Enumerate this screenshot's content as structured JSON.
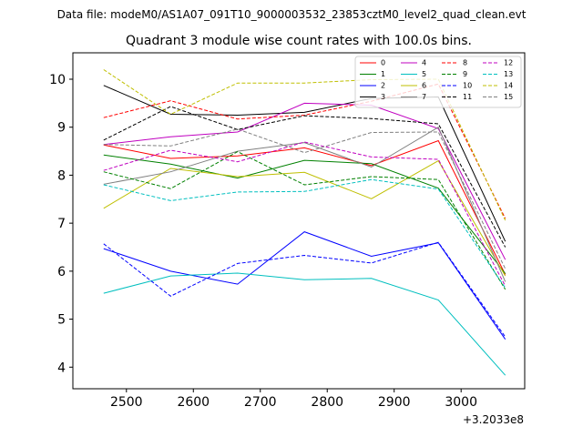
{
  "figure": {
    "suptitle": "Data file: modeM0/AS1A07_091T10_9000003532_23853cztM0_level2_quad_clean.evt",
    "title": "Quadrant 3 module wise count rates with 100.0s bins."
  },
  "chart_data": {
    "type": "line",
    "title": "Quadrant 3 module wise count rates with 100.0s bins.",
    "xlabel": "",
    "ylabel": "",
    "x_offset_label": "+3.2033e8",
    "x": [
      2466,
      2566,
      2666,
      2766,
      2866,
      2966,
      3066
    ],
    "xlim": [
      2420,
      3095
    ],
    "ylim": [
      3.55,
      10.55
    ],
    "xticks": [
      2500,
      2600,
      2700,
      2800,
      2900,
      3000
    ],
    "yticks": [
      4,
      5,
      6,
      7,
      8,
      9,
      10
    ],
    "grid": false,
    "legend": {
      "placement": "top-right",
      "columns": 4
    },
    "series": [
      {
        "name": "0",
        "color": "#ff0000",
        "dash": "solid",
        "values": [
          8.63,
          8.35,
          8.4,
          8.57,
          8.2,
          8.72,
          5.93
        ]
      },
      {
        "name": "1",
        "color": "#008000",
        "dash": "solid",
        "values": [
          8.42,
          8.23,
          7.94,
          8.31,
          8.24,
          7.73,
          5.95
        ]
      },
      {
        "name": "2",
        "color": "#0000ff",
        "dash": "solid",
        "values": [
          6.47,
          6.0,
          5.73,
          6.82,
          6.31,
          6.59,
          4.58
        ]
      },
      {
        "name": "3",
        "color": "#000000",
        "dash": "solid",
        "values": [
          9.87,
          9.27,
          9.25,
          9.31,
          9.6,
          9.63,
          6.62
        ]
      },
      {
        "name": "4",
        "color": "#c000c0",
        "dash": "solid",
        "values": [
          8.64,
          8.8,
          8.9,
          9.5,
          9.46,
          8.97,
          6.24
        ]
      },
      {
        "name": "5",
        "color": "#00bfbf",
        "dash": "solid",
        "values": [
          5.54,
          5.9,
          5.96,
          5.82,
          5.85,
          5.4,
          3.83
        ]
      },
      {
        "name": "6",
        "color": "#bfbf00",
        "dash": "solid",
        "values": [
          7.31,
          8.14,
          7.97,
          8.06,
          7.51,
          8.3,
          5.9
        ]
      },
      {
        "name": "7",
        "color": "#808080",
        "dash": "solid",
        "values": [
          7.81,
          8.07,
          8.5,
          8.68,
          8.17,
          9.0,
          5.78
        ]
      },
      {
        "name": "8",
        "color": "#ff0000",
        "dash": "dashed",
        "values": [
          9.2,
          9.55,
          9.17,
          9.25,
          9.54,
          9.9,
          7.1
        ]
      },
      {
        "name": "9",
        "color": "#008000",
        "dash": "dashed",
        "values": [
          8.07,
          7.72,
          8.49,
          7.8,
          7.97,
          7.91,
          5.62
        ]
      },
      {
        "name": "10",
        "color": "#0000ff",
        "dash": "dashed",
        "values": [
          6.57,
          5.48,
          6.16,
          6.33,
          6.17,
          6.6,
          4.63
        ]
      },
      {
        "name": "11",
        "color": "#000000",
        "dash": "dashed",
        "values": [
          8.73,
          9.43,
          8.95,
          9.24,
          9.18,
          9.07,
          6.5
        ]
      },
      {
        "name": "12",
        "color": "#c000c0",
        "dash": "dashed",
        "values": [
          8.1,
          8.52,
          8.28,
          8.69,
          8.38,
          8.33,
          5.69
        ]
      },
      {
        "name": "13",
        "color": "#00bfbf",
        "dash": "dashed",
        "values": [
          7.8,
          7.47,
          7.65,
          7.66,
          7.91,
          7.71,
          5.65
        ]
      },
      {
        "name": "14",
        "color": "#bfbf00",
        "dash": "dashed",
        "values": [
          10.2,
          9.27,
          9.92,
          9.92,
          9.99,
          10.0,
          7.06
        ]
      },
      {
        "name": "15",
        "color": "#808080",
        "dash": "dashed",
        "values": [
          8.64,
          8.61,
          8.96,
          8.47,
          8.89,
          8.9,
          6.05
        ]
      }
    ]
  }
}
